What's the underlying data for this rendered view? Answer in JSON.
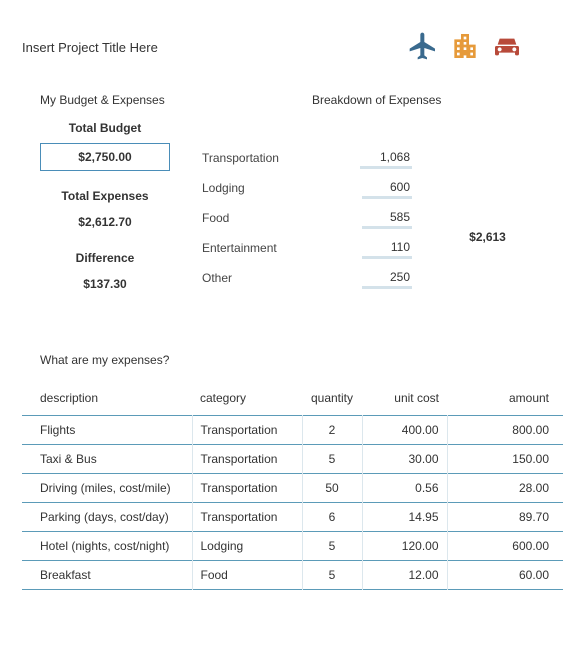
{
  "project_title": "Insert Project Title Here",
  "icons": {
    "plane_color": "#3a6a8e",
    "building_color": "#e69a3a",
    "car_color": "#b84a3a"
  },
  "section_titles": {
    "left": "My Budget & Expenses",
    "right": "Breakdown of Expenses"
  },
  "budget": {
    "total_budget_label": "Total Budget",
    "total_budget_value": "$2,750.00",
    "total_expenses_label": "Total Expenses",
    "total_expenses_value": "$2,612.70",
    "difference_label": "Difference",
    "difference_value": "$137.30"
  },
  "breakdown": {
    "items": [
      {
        "category": "Transportation",
        "value": "1,068"
      },
      {
        "category": "Lodging",
        "value": "600"
      },
      {
        "category": "Food",
        "value": "585"
      },
      {
        "category": "Entertainment",
        "value": "110"
      },
      {
        "category": "Other",
        "value": "250"
      }
    ],
    "total": "$2,613"
  },
  "expenses_title": "What are my expenses?",
  "table": {
    "columns": {
      "description": "description",
      "category": "category",
      "quantity": "quantity",
      "unit_cost": "unit cost",
      "amount": "amount"
    },
    "rows": [
      {
        "description": "Flights",
        "category": "Transportation",
        "quantity": "2",
        "unit_cost": "400.00",
        "amount": "800.00"
      },
      {
        "description": "Taxi & Bus",
        "category": "Transportation",
        "quantity": "5",
        "unit_cost": "30.00",
        "amount": "150.00"
      },
      {
        "description": "Driving (miles, cost/mile)",
        "category": "Transportation",
        "quantity": "50",
        "unit_cost": "0.56",
        "amount": "28.00"
      },
      {
        "description": "Parking (days, cost/day)",
        "category": "Transportation",
        "quantity": "6",
        "unit_cost": "14.95",
        "amount": "89.70"
      },
      {
        "description": "Hotel (nights, cost/night)",
        "category": "Lodging",
        "quantity": "5",
        "unit_cost": "120.00",
        "amount": "600.00"
      },
      {
        "description": "Breakfast",
        "category": "Food",
        "quantity": "5",
        "unit_cost": "12.00",
        "amount": "60.00"
      }
    ]
  },
  "colors": {
    "border_accent": "#4a8db8",
    "row_border": "#5b9bb8",
    "cell_divider": "#dce7ed",
    "underline": "#d4e2ea",
    "text": "#333333",
    "background": "#ffffff"
  },
  "typography": {
    "base_fontsize": 12,
    "font_family": "Arial"
  }
}
